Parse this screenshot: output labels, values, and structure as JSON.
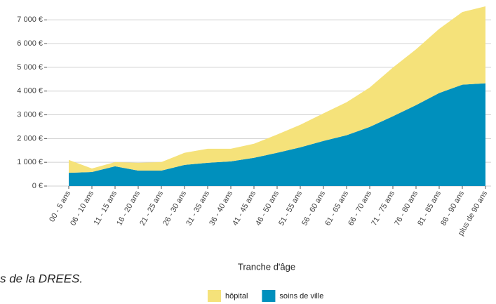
{
  "chart_data": {
    "type": "stacked-area",
    "x_label": "Tranche d'âge",
    "source": "s de la DREES.",
    "categories": [
      "00 - 5 ans",
      "06 - 10 ans",
      "11 - 15 ans",
      "16 - 20 ans",
      "21 - 25 ans",
      "26 - 30 ans",
      "31 - 35 ans",
      "36 - 40 ans",
      "41 - 45 ans",
      "46 - 50 ans",
      "51 - 55 ans",
      "56 - 60 ans",
      "61 - 65 ans",
      "66 - 70 ans",
      "71 - 75 ans",
      "76 - 80 ans",
      "81 - 85 ans",
      "86 - 90 ans",
      "plus de 90 ans"
    ],
    "series": [
      {
        "name": "hôpital",
        "color": "#f5e27a",
        "values": [
          540,
          150,
          180,
          330,
          360,
          510,
          590,
          530,
          590,
          770,
          950,
          1160,
          1390,
          1660,
          2050,
          2350,
          2700,
          3060,
          3240
        ]
      },
      {
        "name": "soins de ville",
        "color": "#0090bd",
        "values": [
          560,
          590,
          830,
          650,
          650,
          890,
          980,
          1040,
          1190,
          1400,
          1630,
          1900,
          2140,
          2490,
          2940,
          3410,
          3920,
          4270,
          4330
        ]
      }
    ],
    "ylim": [
      0,
      7600
    ],
    "yticks": [
      {
        "value": 0,
        "label": "0 €"
      },
      {
        "value": 1000,
        "label": "1 000 €"
      },
      {
        "value": 2000,
        "label": "2 000 €"
      },
      {
        "value": 3000,
        "label": "3 000 €"
      },
      {
        "value": 4000,
        "label": "4 000 €"
      },
      {
        "value": 5000,
        "label": "5 000 €"
      },
      {
        "value": 6000,
        "label": "6 000 €"
      },
      {
        "value": 7000,
        "label": "7 000 €"
      }
    ],
    "grid": true
  }
}
